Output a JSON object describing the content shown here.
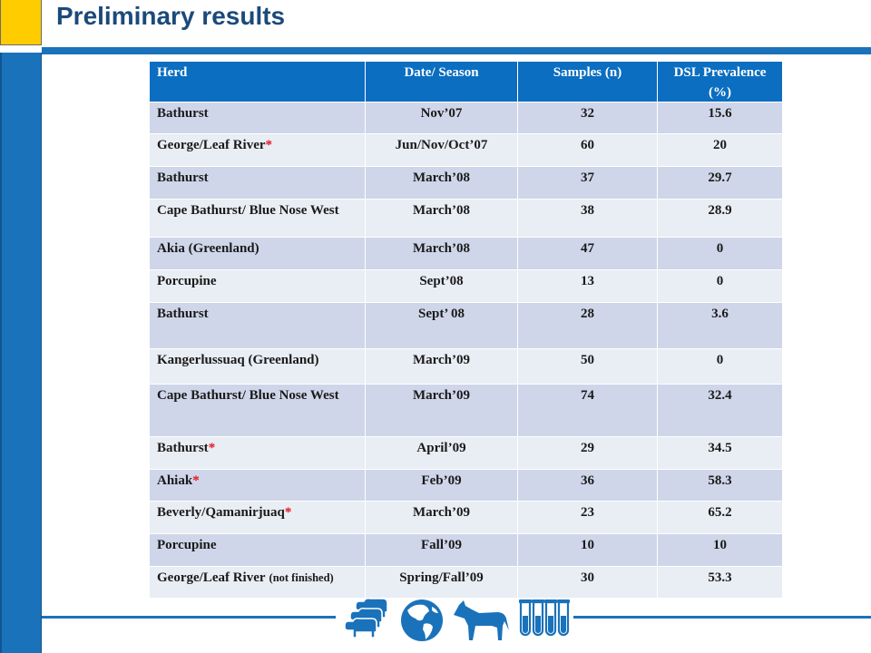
{
  "slide": {
    "title": "Preliminary results"
  },
  "colors": {
    "title": "#1b4a7a",
    "accent_blue": "#1a72bb",
    "header_blue": "#0b6ec0",
    "accent_yellow": "#ffcc00",
    "row_dark": "#cfd6e9",
    "row_light": "#e9edf4",
    "asterisk": "#e8141b"
  },
  "table": {
    "headers": {
      "herd": "Herd",
      "date": "Date/ Season",
      "samples": "Samples (n)",
      "prevalence": "DSL Prevalence (%)"
    },
    "rows": [
      {
        "herd": "Bathurst",
        "date": "Nov’07",
        "samples": "32",
        "prevalence": "15.6"
      },
      {
        "herd": "George/Leaf River",
        "mark": "*",
        "date": "Jun/Nov/Oct’07",
        "samples": "60",
        "prevalence": "20"
      },
      {
        "herd": "Bathurst",
        "date": "March’08",
        "samples": "37",
        "prevalence": "29.7"
      },
      {
        "herd": "Cape Bathurst/ Blue Nose West",
        "date": "March’08",
        "samples": "38",
        "prevalence": "28.9"
      },
      {
        "herd": "Akia (Greenland)",
        "date": "March’08",
        "samples": "47",
        "prevalence": "0"
      },
      {
        "herd": "Porcupine",
        "date": "Sept’08",
        "samples": "13",
        "prevalence": "0"
      },
      {
        "herd": "Bathurst",
        "date": "Sept’ 08",
        "samples": "28",
        "prevalence": "3.6"
      },
      {
        "herd": "Kangerlussuaq (Greenland)",
        "date": "March’09",
        "samples": "50",
        "prevalence": "0"
      },
      {
        "herd": "Cape Bathurst/ Blue Nose West",
        "date": "March’09",
        "samples": "74",
        "prevalence": "32.4"
      },
      {
        "herd": "Bathurst",
        "mark": "*",
        "date": "April’09",
        "samples": "29",
        "prevalence": "34.5"
      },
      {
        "herd": "Ahiak",
        "mark": "*",
        "date": "Feb’09",
        "samples": "36",
        "prevalence": "58.3"
      },
      {
        "herd": "Beverly/Qamanirjuaq",
        "mark": "*",
        "date": "March’09",
        "samples": "23",
        "prevalence": "65.2"
      },
      {
        "herd": "Porcupine",
        "date": "Fall’09",
        "samples": "10",
        "prevalence": "10"
      },
      {
        "herd": "George/Leaf River",
        "note": "(not finished)",
        "date": "Spring/Fall’09",
        "samples": "30",
        "prevalence": "53.3"
      }
    ]
  },
  "footer_icons": [
    "caribou-herd-icon",
    "globe-icon",
    "horse-icon",
    "test-tubes-icon"
  ]
}
